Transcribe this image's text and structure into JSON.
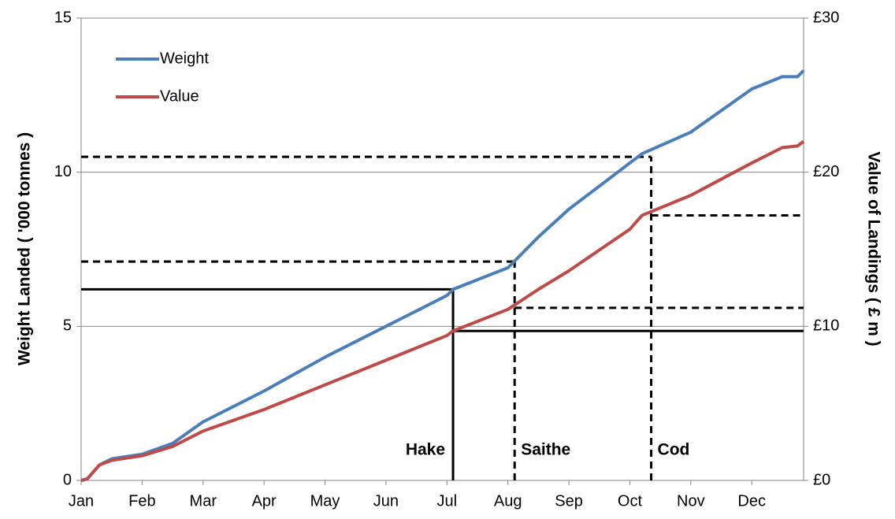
{
  "chart_data": {
    "type": "line",
    "xlim": [
      0,
      11.85
    ],
    "xticks": [
      {
        "value": 0,
        "label": "Jan"
      },
      {
        "value": 1,
        "label": "Feb"
      },
      {
        "value": 2,
        "label": "Mar"
      },
      {
        "value": 3,
        "label": "Apr"
      },
      {
        "value": 4,
        "label": "May"
      },
      {
        "value": 5,
        "label": "Jun"
      },
      {
        "value": 6,
        "label": "Jul"
      },
      {
        "value": 7,
        "label": "Aug"
      },
      {
        "value": 8,
        "label": "Sep"
      },
      {
        "value": 9,
        "label": "Oct"
      },
      {
        "value": 10,
        "label": "Nov"
      },
      {
        "value": 11,
        "label": "Dec"
      }
    ],
    "ylim": [
      0,
      15
    ],
    "yticks": [
      0,
      5,
      10,
      15
    ],
    "y2lim": [
      0,
      30
    ],
    "y2ticks": [
      {
        "value": 0,
        "label": "£0"
      },
      {
        "value": 10,
        "label": "£10"
      },
      {
        "value": 20,
        "label": "£20"
      },
      {
        "value": 30,
        "label": "£30"
      }
    ],
    "ylabel": "Weight Landed ( '000 tonnes )",
    "y2label": "Value of Landings ( £ m )",
    "grid": true,
    "legend": "upper left",
    "x": [
      0,
      0.1,
      0.3,
      0.5,
      1,
      1.5,
      2,
      3,
      4,
      5,
      6,
      6.1,
      7,
      7.5,
      8,
      9,
      9.2,
      10,
      11,
      11.5,
      11.75,
      11.85
    ],
    "series": [
      {
        "name": "Weight",
        "color": "#4a7ebb",
        "values": [
          0,
          0.05,
          0.5,
          0.7,
          0.85,
          1.2,
          1.9,
          2.9,
          4.0,
          5.0,
          6.0,
          6.2,
          6.9,
          7.9,
          8.8,
          10.3,
          10.6,
          11.3,
          12.7,
          13.1,
          13.1,
          13.3
        ]
      },
      {
        "name": "Value",
        "color": "#be4b48",
        "axis": "y2",
        "values": [
          0,
          0.1,
          1.0,
          1.3,
          1.6,
          2.2,
          3.2,
          4.6,
          6.2,
          7.8,
          9.4,
          9.7,
          11.1,
          12.4,
          13.6,
          16.3,
          17.2,
          18.5,
          20.6,
          21.6,
          21.7,
          22.0
        ]
      }
    ],
    "markers": [
      {
        "label": "Hake",
        "x": 6.1,
        "weight": 6.2,
        "value": 9.7,
        "style": "solid"
      },
      {
        "label": "Saithe",
        "x": 7.11,
        "weight": 7.1,
        "value": 11.2,
        "style": "dashed"
      },
      {
        "label": "Cod",
        "x": 9.35,
        "weight": 10.5,
        "value": 17.2,
        "style": "dashed"
      }
    ]
  }
}
